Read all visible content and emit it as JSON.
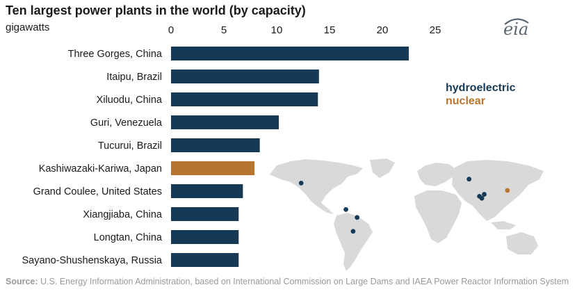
{
  "chart_data": {
    "type": "bar",
    "orientation": "horizontal",
    "title": "Ten largest power plants in the world (by capacity)",
    "unit_label": "gigawatts",
    "xlim": [
      0,
      25
    ],
    "ticks": [
      0,
      5,
      10,
      15,
      20,
      25
    ],
    "grid": false,
    "legend": [
      "hydroelectric",
      "nuclear"
    ],
    "legend_placement": "right",
    "categories": [
      "Three Gorges, China",
      "Itaipu, Brazil",
      "Xiluodu, China",
      "Guri, Venezuela",
      "Tucurui, Brazil",
      "Kashiwazaki-Kariwa, Japan",
      "Grand Coulee, United States",
      "Xiangjiaba, China",
      "Longtan, China",
      "Sayano-Shushenskaya, Russia"
    ],
    "values": [
      22.5,
      14.0,
      13.9,
      10.2,
      8.4,
      7.9,
      6.8,
      6.4,
      6.4,
      6.4
    ],
    "plant_type": [
      "hydroelectric",
      "hydroelectric",
      "hydroelectric",
      "hydroelectric",
      "hydroelectric",
      "nuclear",
      "hydroelectric",
      "hydroelectric",
      "hydroelectric",
      "hydroelectric"
    ],
    "colors": {
      "hydroelectric": "#163a55",
      "nuclear": "#b8752f"
    }
  },
  "logo_text": "eia",
  "source": {
    "label": "Source:",
    "text": " U.S. Energy Information Administration, based on International Commission on Large Dams and IAEA Power Reactor Information System"
  },
  "map": {
    "land_color": "#d9d9d9",
    "markers": [
      {
        "lon": -119,
        "lat": 48,
        "type": "hydroelectric"
      },
      {
        "lon": 91,
        "lat": 54,
        "type": "hydroelectric"
      },
      {
        "lon": 110,
        "lat": 31,
        "type": "hydroelectric"
      },
      {
        "lon": 104,
        "lat": 28,
        "type": "hydroelectric"
      },
      {
        "lon": 107,
        "lat": 25,
        "type": "hydroelectric"
      },
      {
        "lon": 139,
        "lat": 37,
        "type": "nuclear"
      },
      {
        "lon": -63,
        "lat": 8,
        "type": "hydroelectric"
      },
      {
        "lon": -49,
        "lat": -4,
        "type": "hydroelectric"
      },
      {
        "lon": -54,
        "lat": -25,
        "type": "hydroelectric"
      }
    ]
  }
}
